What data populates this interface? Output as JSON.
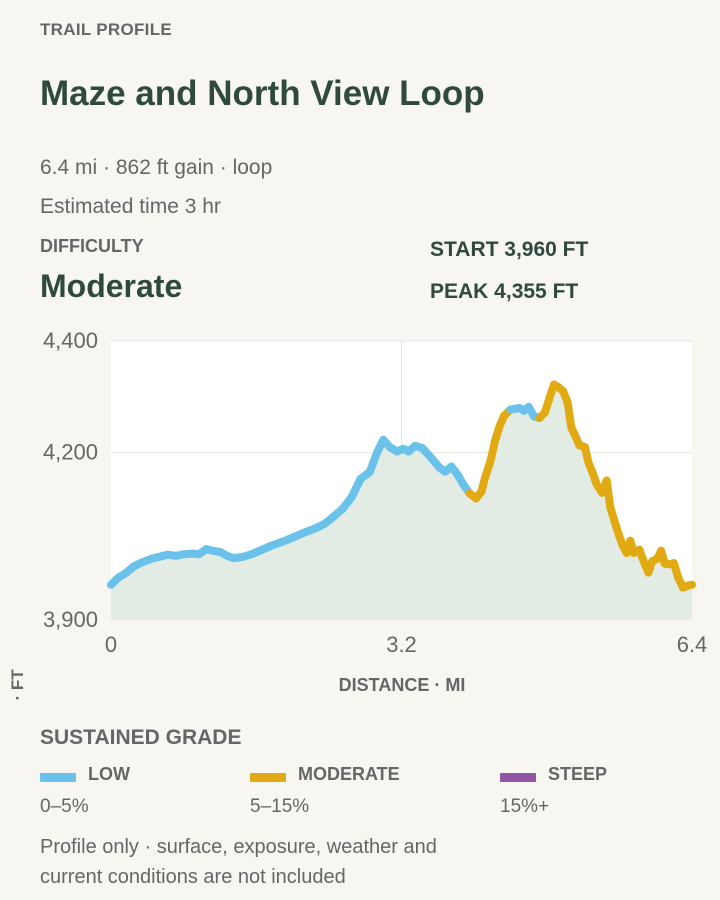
{
  "header": {
    "eyebrow": "TRAIL PROFILE",
    "title": "Maze and North View Loop",
    "summary": "6.4 mi · 862 ft gain · loop",
    "estimate": "Estimated time 3 hr"
  },
  "difficulty": {
    "label": "DIFFICULTY",
    "value": "Moderate"
  },
  "stats": {
    "start": "START 3,960 FT",
    "peak": "PEAK 4,355 FT"
  },
  "chart_data": {
    "type": "area",
    "xlabel": "DISTANCE · MI",
    "ylabel": "ELEVATION · FT",
    "xlim": [
      0,
      6.4
    ],
    "ylim": [
      3900,
      4400
    ],
    "x_ticks": [
      0,
      3.2,
      6.4
    ],
    "x_tick_labels": [
      "0",
      "3.2",
      "6.4"
    ],
    "y_ticks": [
      3900,
      4200,
      4400
    ],
    "y_tick_labels": [
      "3,900",
      "4,200",
      "4,400"
    ],
    "grid": true,
    "colors": {
      "low": "#6ac1ea",
      "moderate": "#e2aa12",
      "steep": "#9056a6",
      "fill": "#e3ece4"
    },
    "points": [
      {
        "x": 0.0,
        "y": 3963,
        "grade": "low"
      },
      {
        "x": 0.08,
        "y": 3976,
        "grade": "low"
      },
      {
        "x": 0.17,
        "y": 3985,
        "grade": "low"
      },
      {
        "x": 0.25,
        "y": 3996,
        "grade": "low"
      },
      {
        "x": 0.35,
        "y": 4004,
        "grade": "low"
      },
      {
        "x": 0.45,
        "y": 4010,
        "grade": "low"
      },
      {
        "x": 0.55,
        "y": 4014,
        "grade": "low"
      },
      {
        "x": 0.62,
        "y": 4017,
        "grade": "low"
      },
      {
        "x": 0.72,
        "y": 4015,
        "grade": "low"
      },
      {
        "x": 0.8,
        "y": 4018,
        "grade": "low"
      },
      {
        "x": 0.9,
        "y": 4019,
        "grade": "low"
      },
      {
        "x": 0.97,
        "y": 4018,
        "grade": "low"
      },
      {
        "x": 1.05,
        "y": 4027,
        "grade": "low"
      },
      {
        "x": 1.12,
        "y": 4024,
        "grade": "low"
      },
      {
        "x": 1.2,
        "y": 4022,
        "grade": "low"
      },
      {
        "x": 1.28,
        "y": 4015,
        "grade": "low"
      },
      {
        "x": 1.35,
        "y": 4011,
        "grade": "low"
      },
      {
        "x": 1.45,
        "y": 4013,
        "grade": "low"
      },
      {
        "x": 1.55,
        "y": 4018,
        "grade": "low"
      },
      {
        "x": 1.65,
        "y": 4025,
        "grade": "low"
      },
      {
        "x": 1.75,
        "y": 4032,
        "grade": "low"
      },
      {
        "x": 1.85,
        "y": 4038,
        "grade": "low"
      },
      {
        "x": 1.95,
        "y": 4044,
        "grade": "low"
      },
      {
        "x": 2.05,
        "y": 4051,
        "grade": "low"
      },
      {
        "x": 2.15,
        "y": 4058,
        "grade": "low"
      },
      {
        "x": 2.25,
        "y": 4064,
        "grade": "low"
      },
      {
        "x": 2.35,
        "y": 4072,
        "grade": "low"
      },
      {
        "x": 2.45,
        "y": 4085,
        "grade": "low"
      },
      {
        "x": 2.55,
        "y": 4099,
        "grade": "low"
      },
      {
        "x": 2.65,
        "y": 4120,
        "grade": "low"
      },
      {
        "x": 2.75,
        "y": 4153,
        "grade": "low"
      },
      {
        "x": 2.85,
        "y": 4165,
        "grade": "low"
      },
      {
        "x": 2.93,
        "y": 4200,
        "grade": "low"
      },
      {
        "x": 3.0,
        "y": 4223,
        "grade": "low"
      },
      {
        "x": 3.07,
        "y": 4210,
        "grade": "low"
      },
      {
        "x": 3.15,
        "y": 4202,
        "grade": "low"
      },
      {
        "x": 3.22,
        "y": 4207,
        "grade": "low"
      },
      {
        "x": 3.28,
        "y": 4202,
        "grade": "low"
      },
      {
        "x": 3.35,
        "y": 4212,
        "grade": "low"
      },
      {
        "x": 3.43,
        "y": 4208,
        "grade": "low"
      },
      {
        "x": 3.52,
        "y": 4192,
        "grade": "low"
      },
      {
        "x": 3.62,
        "y": 4173,
        "grade": "low"
      },
      {
        "x": 3.68,
        "y": 4166,
        "grade": "low"
      },
      {
        "x": 3.75,
        "y": 4175,
        "grade": "low"
      },
      {
        "x": 3.82,
        "y": 4160,
        "grade": "low"
      },
      {
        "x": 3.88,
        "y": 4143,
        "grade": "low"
      },
      {
        "x": 3.95,
        "y": 4127,
        "grade": "low"
      },
      {
        "x": 4.02,
        "y": 4118,
        "grade": "moderate"
      },
      {
        "x": 4.08,
        "y": 4130,
        "grade": "moderate"
      },
      {
        "x": 4.12,
        "y": 4155,
        "grade": "moderate"
      },
      {
        "x": 4.18,
        "y": 4185,
        "grade": "moderate"
      },
      {
        "x": 4.23,
        "y": 4221,
        "grade": "moderate"
      },
      {
        "x": 4.28,
        "y": 4247,
        "grade": "moderate"
      },
      {
        "x": 4.33,
        "y": 4266,
        "grade": "moderate"
      },
      {
        "x": 4.4,
        "y": 4277,
        "grade": "moderate"
      },
      {
        "x": 4.5,
        "y": 4280,
        "grade": "low"
      },
      {
        "x": 4.55,
        "y": 4275,
        "grade": "low"
      },
      {
        "x": 4.6,
        "y": 4282,
        "grade": "low"
      },
      {
        "x": 4.66,
        "y": 4265,
        "grade": "low"
      },
      {
        "x": 4.72,
        "y": 4262,
        "grade": "low"
      },
      {
        "x": 4.78,
        "y": 4272,
        "grade": "moderate"
      },
      {
        "x": 4.84,
        "y": 4303,
        "grade": "moderate"
      },
      {
        "x": 4.88,
        "y": 4322,
        "grade": "moderate"
      },
      {
        "x": 4.93,
        "y": 4317,
        "grade": "moderate"
      },
      {
        "x": 4.98,
        "y": 4310,
        "grade": "moderate"
      },
      {
        "x": 5.03,
        "y": 4290,
        "grade": "moderate"
      },
      {
        "x": 5.07,
        "y": 4245,
        "grade": "moderate"
      },
      {
        "x": 5.12,
        "y": 4228,
        "grade": "moderate"
      },
      {
        "x": 5.16,
        "y": 4213,
        "grade": "moderate"
      },
      {
        "x": 5.22,
        "y": 4210,
        "grade": "moderate"
      },
      {
        "x": 5.26,
        "y": 4182,
        "grade": "moderate"
      },
      {
        "x": 5.31,
        "y": 4162,
        "grade": "moderate"
      },
      {
        "x": 5.35,
        "y": 4143,
        "grade": "moderate"
      },
      {
        "x": 5.41,
        "y": 4128,
        "grade": "moderate"
      },
      {
        "x": 5.46,
        "y": 4150,
        "grade": "moderate"
      },
      {
        "x": 5.5,
        "y": 4102,
        "grade": "moderate"
      },
      {
        "x": 5.56,
        "y": 4070,
        "grade": "moderate"
      },
      {
        "x": 5.6,
        "y": 4050,
        "grade": "moderate"
      },
      {
        "x": 5.64,
        "y": 4032,
        "grade": "moderate"
      },
      {
        "x": 5.68,
        "y": 4020,
        "grade": "moderate"
      },
      {
        "x": 5.72,
        "y": 4042,
        "grade": "moderate"
      },
      {
        "x": 5.76,
        "y": 4020,
        "grade": "moderate"
      },
      {
        "x": 5.82,
        "y": 4026,
        "grade": "moderate"
      },
      {
        "x": 5.88,
        "y": 4000,
        "grade": "moderate"
      },
      {
        "x": 5.92,
        "y": 3985,
        "grade": "moderate"
      },
      {
        "x": 5.96,
        "y": 4005,
        "grade": "moderate"
      },
      {
        "x": 6.02,
        "y": 4010,
        "grade": "moderate"
      },
      {
        "x": 6.06,
        "y": 4024,
        "grade": "moderate"
      },
      {
        "x": 6.1,
        "y": 4001,
        "grade": "moderate"
      },
      {
        "x": 6.15,
        "y": 4000,
        "grade": "moderate"
      },
      {
        "x": 6.2,
        "y": 4002,
        "grade": "moderate"
      },
      {
        "x": 6.25,
        "y": 3975,
        "grade": "moderate"
      },
      {
        "x": 6.3,
        "y": 3958,
        "grade": "moderate"
      },
      {
        "x": 6.36,
        "y": 3962,
        "grade": "moderate"
      },
      {
        "x": 6.4,
        "y": 3963,
        "grade": "moderate"
      }
    ]
  },
  "legend": {
    "title": "SUSTAINED GRADE",
    "items": [
      {
        "name": "LOW",
        "range": "0–5%",
        "color": "#6ac1ea"
      },
      {
        "name": "MODERATE",
        "range": "5–15%",
        "color": "#e2aa12"
      },
      {
        "name": "STEEP",
        "range": "15%+",
        "color": "#9056a6"
      }
    ]
  },
  "note": "Profile only · surface, exposure, weather and current conditions are not included"
}
